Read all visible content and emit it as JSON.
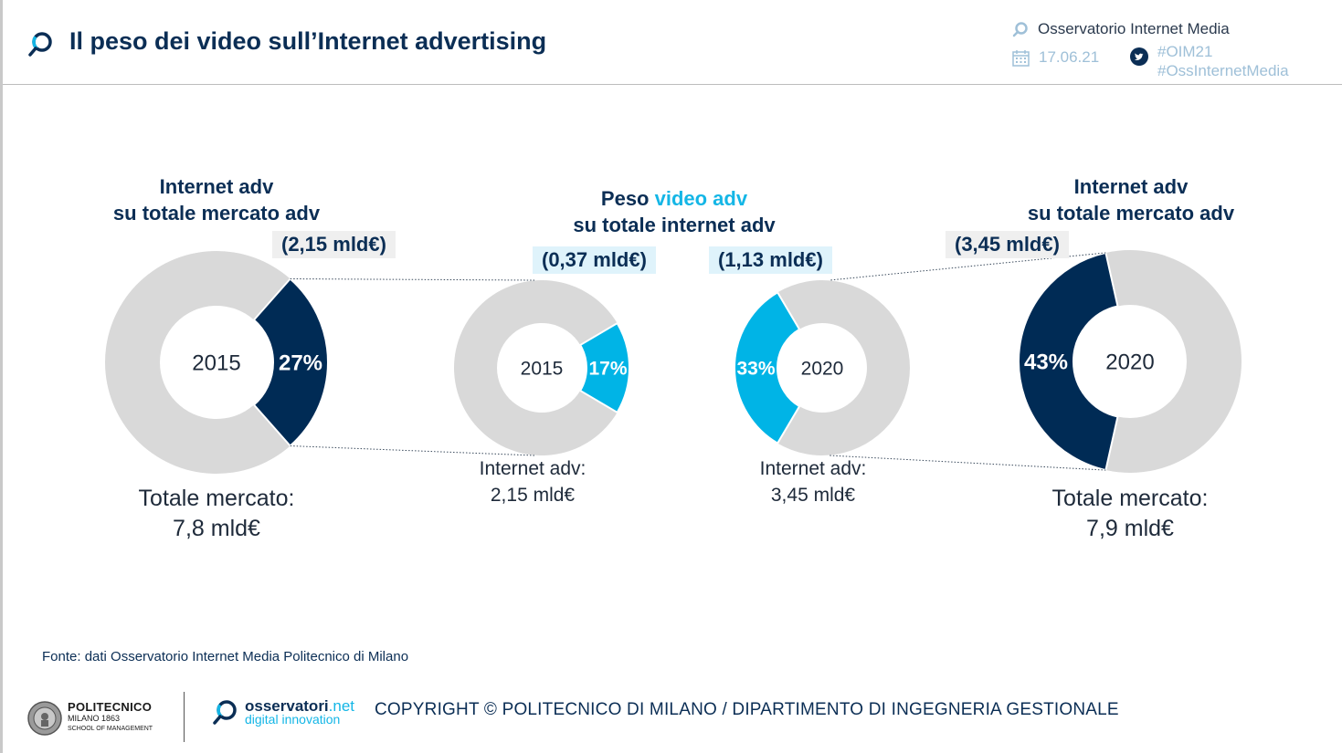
{
  "header": {
    "title": "Il peso dei video sull’Internet advertising",
    "organization": "Osservatorio Internet Media",
    "date": "17.06.21",
    "hashtags": [
      "#OIM21",
      "#OssInternetMedia"
    ],
    "icons": {
      "title": "magnifier-logo-icon",
      "organization": "magnifier-logo-icon",
      "date": "calendar-icon",
      "social": "twitter-icon"
    }
  },
  "headings": {
    "left": [
      "Internet adv",
      "su totale mercato adv"
    ],
    "middle_prefix": "Peso ",
    "middle_accent": "video adv",
    "middle_line2": "su totale internet adv",
    "right": [
      "Internet adv",
      "su totale mercato adv"
    ]
  },
  "pills": {
    "p1": "(2,15 mld€)",
    "p2": "(0,37 mld€)",
    "p3": "(1,13 mld€)",
    "p4": "(3,45 mld€)"
  },
  "captions": {
    "c1": [
      "Totale mercato:",
      "7,8 mld€"
    ],
    "c2": [
      "Internet adv:",
      "2,15 mld€"
    ],
    "c3": [
      "Internet adv:",
      "3,45 mld€"
    ],
    "c4": [
      "Totale mercato:",
      "7,9 mld€"
    ]
  },
  "colors": {
    "navy": "#0b2e55",
    "cyan": "#14b6e6",
    "grey": "#d9d9d9",
    "donut_navy": "#002b55",
    "donut_cyan": "#00b4e6"
  },
  "chart_data": [
    {
      "type": "pie",
      "title": "Internet adv su totale mercato adv",
      "center_label": "2015",
      "highlight_label": "27%",
      "values": [
        27,
        73
      ],
      "highlight_color": "#002b55",
      "highlight_side": "right"
    },
    {
      "type": "pie",
      "title": "Peso video adv su totale internet adv",
      "center_label": "2015",
      "highlight_label": "17%",
      "values": [
        17,
        83
      ],
      "highlight_color": "#00b4e6",
      "highlight_side": "right"
    },
    {
      "type": "pie",
      "title": "Peso video adv su totale internet adv",
      "center_label": "2020",
      "highlight_label": "33%",
      "values": [
        33,
        67
      ],
      "highlight_color": "#00b4e6",
      "highlight_side": "left"
    },
    {
      "type": "pie",
      "title": "Internet adv su totale mercato adv",
      "center_label": "2020",
      "highlight_label": "43%",
      "values": [
        43,
        57
      ],
      "highlight_color": "#002b55",
      "highlight_side": "left"
    }
  ],
  "footer": {
    "source": "Fonte: dati Osservatorio Internet Media Politecnico di Milano",
    "poli_name": "POLITECNICO",
    "poli_sub": "MILANO 1863",
    "poli_school": "SCHOOL OF MANAGEMENT",
    "oss_name": "osservatori",
    "oss_dotnet": ".net",
    "oss_sub": "digital innovation",
    "copyright": "COPYRIGHT © POLITECNICO DI MILANO / DIPARTIMENTO DI INGEGNERIA GESTIONALE",
    "icons": {
      "poli": "politecnico-seal-icon",
      "oss": "magnifier-logo-icon"
    }
  }
}
